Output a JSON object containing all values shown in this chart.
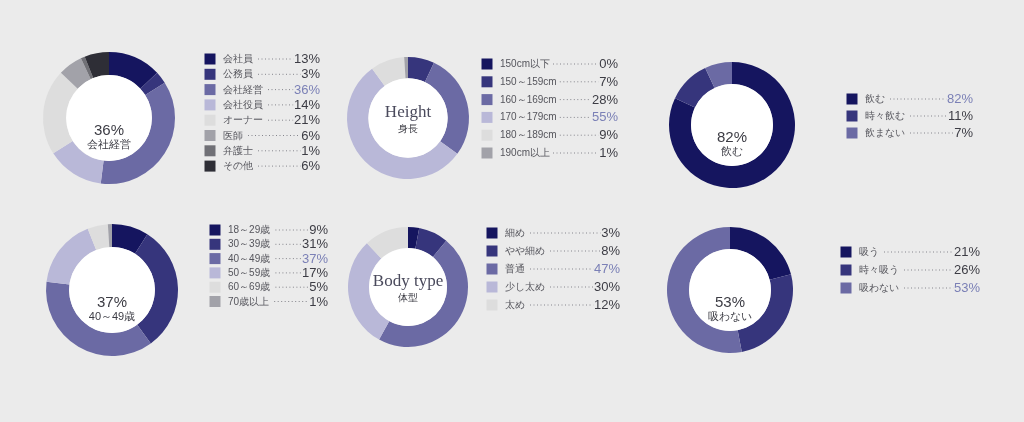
{
  "chart_data": [
    {
      "type": "donut",
      "categories": [
        "会社員",
        "公務員",
        "会社経営",
        "会社役員",
        "オーナー",
        "医師",
        "弁護士",
        "その他"
      ],
      "values": [
        13,
        3,
        36,
        14,
        21,
        6,
        1,
        6
      ],
      "colors": [
        "#15155f",
        "#36357c",
        "#6b6aa4",
        "#b9b8d8",
        "#dddddd",
        "#a2a2a9",
        "#707076",
        "#2e2e36"
      ],
      "value_labels": [
        "13%",
        "3%",
        "36%",
        "14%",
        "21%",
        "6%",
        "1%",
        "6%"
      ],
      "annotations": [
        "36%",
        "会社経営"
      ],
      "legend": "right"
    },
    {
      "type": "donut",
      "title": "Height",
      "subtitle": "身長",
      "categories": [
        "150cm以下",
        "150～159cm",
        "160～169cm",
        "170～179cm",
        "180～189cm",
        "190cm以上"
      ],
      "values": [
        0,
        7,
        28,
        55,
        9,
        1
      ],
      "colors": [
        "#15155f",
        "#36357c",
        "#6b6aa4",
        "#b9b8d8",
        "#dddddd",
        "#a2a2a9"
      ],
      "value_labels": [
        "0%",
        "7%",
        "28%",
        "55%",
        "9%",
        "1%"
      ],
      "legend": "right"
    },
    {
      "type": "donut",
      "categories": [
        "飲む",
        "時々飲む",
        "飲まない"
      ],
      "values": [
        82,
        11,
        7
      ],
      "colors": [
        "#15155f",
        "#36357c",
        "#6b6aa4"
      ],
      "value_labels": [
        "82%",
        "11%",
        "7%"
      ],
      "annotations": [
        "82%",
        "飲む"
      ],
      "legend": "right"
    },
    {
      "type": "donut",
      "categories": [
        "18～29歳",
        "30～39歳",
        "40～49歳",
        "50～59歳",
        "60～69歳",
        "70歳以上"
      ],
      "values": [
        9,
        31,
        37,
        17,
        5,
        1
      ],
      "colors": [
        "#15155f",
        "#36357c",
        "#6b6aa4",
        "#b9b8d8",
        "#dddddd",
        "#a2a2a9"
      ],
      "value_labels": [
        "9%",
        "31%",
        "37%",
        "17%",
        "5%",
        "1%"
      ],
      "annotations": [
        "37%",
        "40～49歳"
      ],
      "legend": "right"
    },
    {
      "type": "donut",
      "title": "Body type",
      "subtitle": "体型",
      "categories": [
        "細め",
        "やや細め",
        "普通",
        "少し太め",
        "太め"
      ],
      "values": [
        3,
        8,
        47,
        30,
        12
      ],
      "colors": [
        "#15155f",
        "#36357c",
        "#6b6aa4",
        "#b9b8d8",
        "#dddddd"
      ],
      "value_labels": [
        "3%",
        "8%",
        "47%",
        "30%",
        "12%"
      ],
      "legend": "right"
    },
    {
      "type": "donut",
      "categories": [
        "吸う",
        "時々吸う",
        "吸わない"
      ],
      "values": [
        21,
        26,
        53
      ],
      "colors": [
        "#15155f",
        "#36357c",
        "#6b6aa4"
      ],
      "value_labels": [
        "21%",
        "26%",
        "53%"
      ],
      "annotations": [
        "53%",
        "吸わない"
      ],
      "legend": "right"
    }
  ]
}
